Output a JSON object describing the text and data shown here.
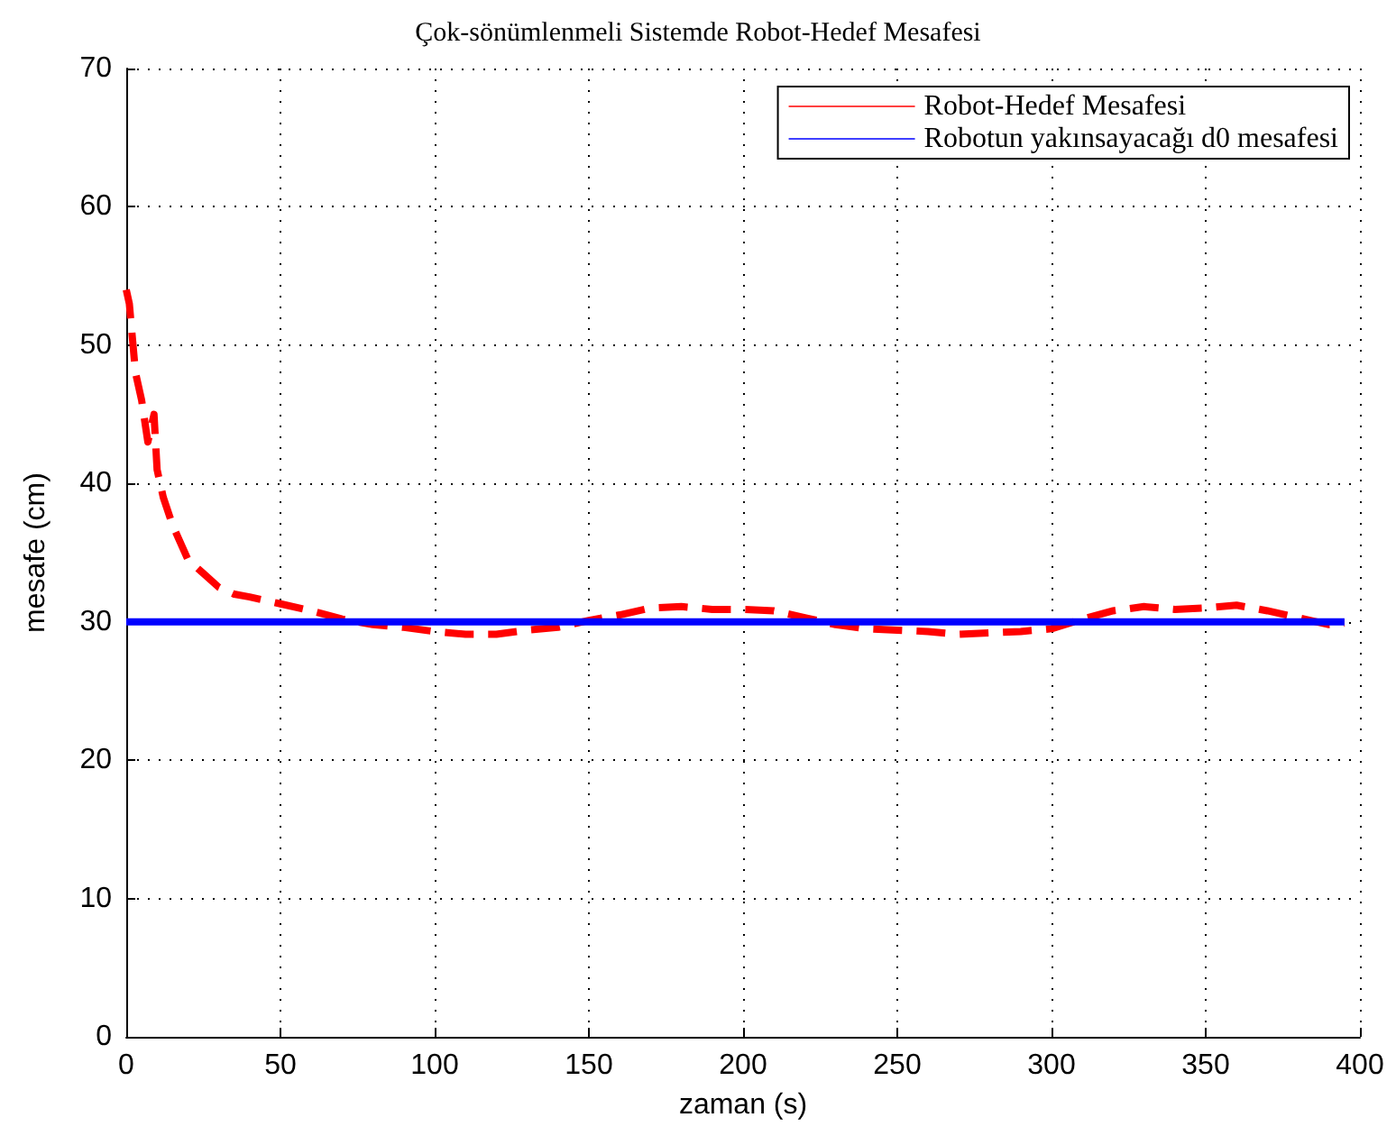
{
  "chart_data": {
    "type": "line",
    "title": "Çok-sönümlenmeli Sistemde Robot-Hedef Mesafesi",
    "xlabel": "zaman (s)",
    "ylabel": "mesafe (cm)",
    "xlim": [
      0,
      400
    ],
    "xticks": [
      0,
      50,
      100,
      150,
      200,
      250,
      300,
      350,
      400
    ],
    "ylim": [
      0,
      70
    ],
    "yticks": [
      0,
      10,
      20,
      30,
      40,
      50,
      60,
      70
    ],
    "grid": true,
    "legend": "top right",
    "marker": "none",
    "series": [
      {
        "name": "Robot-Hedef Mesafesi",
        "color": "#ff0000",
        "line_style": "dashed",
        "x": [
          0,
          1,
          3,
          5,
          7,
          9,
          10,
          12,
          15,
          20,
          25,
          30,
          35,
          40,
          50,
          60,
          70,
          80,
          90,
          100,
          110,
          120,
          130,
          140,
          150,
          160,
          170,
          180,
          190,
          200,
          210,
          220,
          230,
          240,
          250,
          260,
          270,
          280,
          290,
          300,
          310,
          320,
          330,
          340,
          350,
          360,
          370,
          380,
          390,
          395
        ],
        "values": [
          54,
          53,
          48,
          46,
          43,
          45,
          41,
          39,
          37,
          34.5,
          33.5,
          32.5,
          32,
          31.8,
          31.3,
          30.8,
          30.2,
          29.8,
          29.6,
          29.3,
          29.1,
          29.1,
          29.4,
          29.6,
          30.1,
          30.5,
          31,
          31.1,
          30.9,
          30.9,
          30.8,
          30.3,
          29.8,
          29.5,
          29.4,
          29.3,
          29.1,
          29.2,
          29.3,
          29.5,
          30.2,
          30.8,
          31.1,
          30.9,
          31,
          31.2,
          30.8,
          30.3,
          29.8,
          29.9
        ]
      },
      {
        "name": "Robotun yakınsayacağı d0 mesafesi",
        "color": "#0000ff",
        "line_style": "solid",
        "x": [
          0,
          395
        ],
        "values": [
          30,
          30
        ]
      }
    ]
  }
}
